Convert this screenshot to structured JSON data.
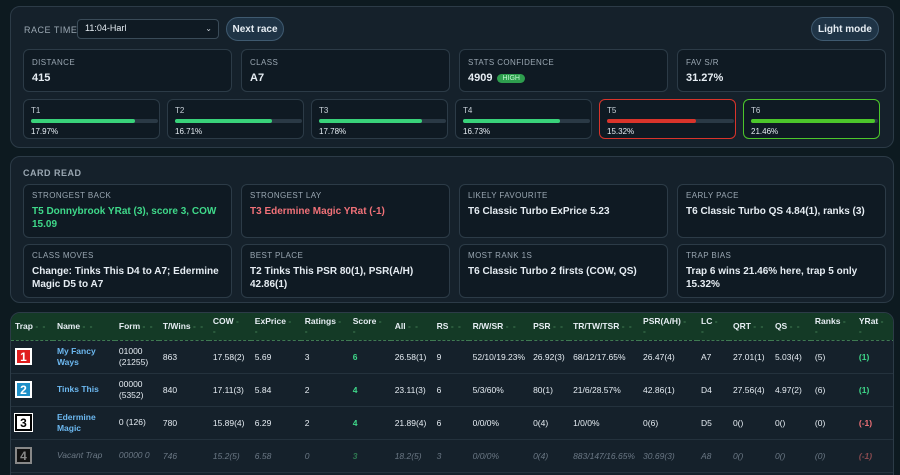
{
  "header": {
    "race_time_label": "RACE TIME",
    "race_time_value": "11:04-Harl",
    "next_race_label": "Next race",
    "light_mode_label": "Light mode"
  },
  "stats": [
    {
      "label": "DISTANCE",
      "value": "415"
    },
    {
      "label": "CLASS",
      "value": "A7"
    },
    {
      "label": "STATS CONFIDENCE",
      "value": "4909",
      "badge": "HIGH"
    },
    {
      "label": "FAV S/R",
      "value": "31.27%"
    }
  ],
  "traps": [
    {
      "label": "T1",
      "pct": "17.97%",
      "fill": 0.82,
      "color": "#39d27a",
      "border": ""
    },
    {
      "label": "T2",
      "pct": "16.71%",
      "fill": 0.76,
      "color": "#39d27a",
      "border": ""
    },
    {
      "label": "T3",
      "pct": "17.78%",
      "fill": 0.81,
      "color": "#39d27a",
      "border": ""
    },
    {
      "label": "T4",
      "pct": "16.73%",
      "fill": 0.76,
      "color": "#39d27a",
      "border": ""
    },
    {
      "label": "T5",
      "pct": "15.32%",
      "fill": 0.7,
      "color": "#d9342b",
      "border": "red"
    },
    {
      "label": "T6",
      "pct": "21.46%",
      "fill": 0.98,
      "color": "#4cc62b",
      "border": "green"
    }
  ],
  "card_read": {
    "title": "CARD READ",
    "items": [
      {
        "label": "STRONGEST BACK",
        "value": "T5 Donnybrook YRat (3), score 3, COW 15.09",
        "tone": "green"
      },
      {
        "label": "STRONGEST LAY",
        "value": "T3 Edermine Magic YRat (-1)",
        "tone": "red"
      },
      {
        "label": "LIKELY FAVOURITE",
        "value": "T6 Classic Turbo ExPrice 5.23",
        "tone": ""
      },
      {
        "label": "EARLY PACE",
        "value": "T6 Classic Turbo QS 4.84(1), ranks (3)",
        "tone": ""
      },
      {
        "label": "CLASS MOVES",
        "value": "Change: Tinks This D4 to A7; Edermine Magic D5 to A7",
        "tone": ""
      },
      {
        "label": "BEST PLACE",
        "value": "T2 Tinks This PSR 80(1), PSR(A/H) 42.86(1)",
        "tone": ""
      },
      {
        "label": "MOST RANK 1S",
        "value": "T6 Classic Turbo 2 firsts (COW, QS)",
        "tone": ""
      },
      {
        "label": "TRAP BIAS",
        "value": "Trap 6 wins 21.46% here, trap 5 only 15.32%",
        "tone": ""
      }
    ]
  },
  "table": {
    "columns": [
      "Trap",
      "Name",
      "Form",
      "T/Wins",
      "COW",
      "ExPrice",
      "Ratings",
      "Score",
      "All",
      "RS",
      "R/W/SR",
      "PSR",
      "TR/TW/TSR",
      "PSR(A/H)",
      "LC",
      "QRT",
      "QS",
      "Ranks",
      "YRat"
    ],
    "rows": [
      {
        "trap": "1",
        "name": "My Fancy Ways",
        "form": "01000 (21255)",
        "twins": "863",
        "cow": "17.58(2)",
        "exprice": "5.69",
        "ratings": "3",
        "score": "6",
        "all": "26.58(1)",
        "rs": "9",
        "rwsr": "52/10/19.23%",
        "psr": "26.92(3)",
        "trtwtsr": "68/12/17.65%",
        "psrah": "26.47(4)",
        "lc": "A7",
        "qrt": "27.01(1)",
        "qs": "5.03(4)",
        "ranks": "(5)",
        "yrat": "(1)",
        "yrat_tone": "pos",
        "vacant": false
      },
      {
        "trap": "2",
        "name": "Tinks This",
        "form": "00000 (5352)",
        "twins": "840",
        "cow": "17.11(3)",
        "exprice": "5.84",
        "ratings": "2",
        "score": "4",
        "all": "23.11(3)",
        "rs": "6",
        "rwsr": "5/3/60%",
        "psr": "80(1)",
        "trtwtsr": "21/6/28.57%",
        "psrah": "42.86(1)",
        "lc": "D4",
        "qrt": "27.56(4)",
        "qs": "4.97(2)",
        "ranks": "(6)",
        "yrat": "(1)",
        "yrat_tone": "pos",
        "vacant": false
      },
      {
        "trap": "3",
        "name": "Edermine Magic",
        "form": "0 (126)",
        "twins": "780",
        "cow": "15.89(4)",
        "exprice": "6.29",
        "ratings": "2",
        "score": "4",
        "all": "21.89(4)",
        "rs": "6",
        "rwsr": "0/0/0%",
        "psr": "0(4)",
        "trtwtsr": "1/0/0%",
        "psrah": "0(6)",
        "lc": "D5",
        "qrt": "0()",
        "qs": "0()",
        "ranks": "(0)",
        "yrat": "(-1)",
        "yrat_tone": "neg",
        "vacant": false
      },
      {
        "trap": "4",
        "name": "Vacant Trap",
        "form": "00000 0",
        "twins": "746",
        "cow": "15.2(5)",
        "exprice": "6.58",
        "ratings": "0",
        "score": "3",
        "all": "18.2(5)",
        "rs": "3",
        "rwsr": "0/0/0%",
        "psr": "0(4)",
        "trtwtsr": "883/147/16.65%",
        "psrah": "30.69(3)",
        "lc": "A8",
        "qrt": "0()",
        "qs": "0()",
        "ranks": "(0)",
        "yrat": "(-1)",
        "yrat_tone": "neg",
        "vacant": true
      }
    ]
  }
}
